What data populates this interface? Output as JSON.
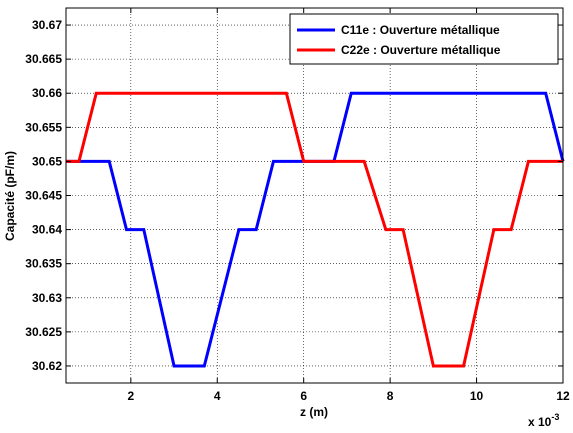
{
  "chart_data": {
    "type": "line",
    "xlabel": "z (m)",
    "ylabel": "Capacité (pF/m)",
    "x_exponent_label": "x 10",
    "x_exponent_power": "-3",
    "xlim": [
      0.0005,
      0.012
    ],
    "ylim": [
      30.6175,
      30.6725
    ],
    "x_ticks": [
      0.002,
      0.004,
      0.006,
      0.008,
      0.01,
      0.012
    ],
    "x_tick_labels": [
      "2",
      "4",
      "6",
      "8",
      "10",
      "12"
    ],
    "y_ticks": [
      30.62,
      30.625,
      30.63,
      30.635,
      30.64,
      30.645,
      30.65,
      30.655,
      30.66,
      30.665,
      30.67
    ],
    "y_tick_labels": [
      "30.62",
      "30.625",
      "30.63",
      "30.635",
      "30.64",
      "30.645",
      "30.65",
      "30.655",
      "30.66",
      "30.665",
      "30.67"
    ],
    "grid": true,
    "legend_position": "top-right",
    "series": [
      {
        "name": "C11e : Ouverture métallique",
        "color": "#0000ff",
        "x": [
          0.0005,
          0.0015,
          0.0019,
          0.0023,
          0.003,
          0.0037,
          0.0045,
          0.0049,
          0.0053,
          0.006,
          0.0067,
          0.0071,
          0.0116,
          0.012
        ],
        "y": [
          30.65,
          30.65,
          30.64,
          30.64,
          30.62,
          30.62,
          30.64,
          30.64,
          30.65,
          30.65,
          30.65,
          30.66,
          30.66,
          30.65
        ]
      },
      {
        "name": "C22e : Ouverture métallique",
        "color": "#ff0000",
        "x": [
          0.0005,
          0.0008,
          0.0012,
          0.0056,
          0.006,
          0.0074,
          0.0079,
          0.0083,
          0.009,
          0.0097,
          0.0104,
          0.0108,
          0.0112,
          0.012
        ],
        "y": [
          30.65,
          30.65,
          30.66,
          30.66,
          30.65,
          30.65,
          30.64,
          30.64,
          30.62,
          30.62,
          30.64,
          30.64,
          30.65,
          30.65
        ]
      }
    ]
  }
}
